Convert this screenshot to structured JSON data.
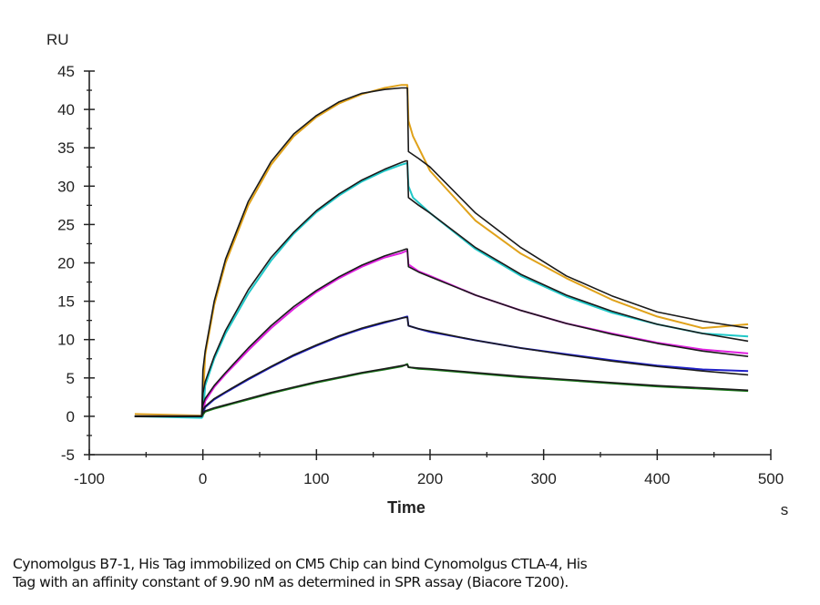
{
  "chart_data": {
    "type": "line",
    "title": "",
    "xlabel": "Time",
    "xunit": "s",
    "ylabel": "RU",
    "xlim": [
      -100,
      500
    ],
    "ylim": [
      -5,
      45
    ],
    "xticks": [
      -100,
      0,
      100,
      200,
      300,
      400,
      500
    ],
    "yticks": [
      -5,
      0,
      5,
      10,
      15,
      20,
      25,
      30,
      35,
      40,
      45
    ],
    "grid": false,
    "legend": "none",
    "association_end_s": 180,
    "series": [
      {
        "name": "conc-1 measured",
        "color": "#e0a21a",
        "kind": "measured",
        "x": [
          -60,
          -1,
          0,
          2,
          10,
          20,
          40,
          60,
          80,
          100,
          120,
          140,
          160,
          175,
          180,
          181,
          185,
          200,
          240,
          280,
          320,
          360,
          400,
          440,
          480
        ],
        "y": [
          0.3,
          0.1,
          2,
          8,
          14.5,
          20,
          27.5,
          32.8,
          36.5,
          39,
          40.8,
          42,
          42.8,
          43.2,
          43.2,
          38.5,
          36.5,
          32,
          25.5,
          21.2,
          18,
          15.2,
          13,
          11.5,
          12
        ]
      },
      {
        "name": "conc-1 fit",
        "color": "#1a1a1a",
        "kind": "fit",
        "x": [
          -60,
          -1,
          0,
          2,
          10,
          20,
          40,
          60,
          80,
          100,
          120,
          140,
          160,
          175,
          179,
          180,
          181,
          190,
          200,
          240,
          280,
          320,
          360,
          400,
          440,
          480
        ],
        "y": [
          0,
          0,
          6,
          8.5,
          15,
          20.5,
          28,
          33.2,
          36.8,
          39.2,
          41,
          42.1,
          42.6,
          42.8,
          42.8,
          42.8,
          34.5,
          33.6,
          32.5,
          26.5,
          22,
          18.3,
          15.7,
          13.6,
          12.4,
          11.5
        ]
      },
      {
        "name": "conc-2 measured",
        "color": "#20c8c8",
        "kind": "measured",
        "x": [
          -60,
          -1,
          0,
          2,
          10,
          20,
          40,
          60,
          80,
          100,
          120,
          140,
          160,
          175,
          180,
          181,
          185,
          200,
          240,
          280,
          320,
          360,
          400,
          440,
          480
        ],
        "y": [
          0,
          -0.2,
          0,
          4,
          7.5,
          10.8,
          16,
          20.3,
          23.8,
          26.6,
          28.8,
          30.6,
          32,
          32.8,
          33,
          30,
          28.5,
          26.5,
          21.8,
          18.3,
          15.6,
          13.5,
          12,
          10.8,
          10.4
        ]
      },
      {
        "name": "conc-2 fit",
        "color": "#1a1a1a",
        "kind": "fit",
        "x": [
          -60,
          -1,
          0,
          2,
          10,
          20,
          40,
          60,
          80,
          100,
          120,
          140,
          160,
          175,
          179,
          180,
          181,
          190,
          200,
          240,
          280,
          320,
          360,
          400,
          440,
          480
        ],
        "y": [
          0,
          0,
          3,
          4.5,
          7.8,
          11.2,
          16.5,
          20.7,
          24,
          26.8,
          29,
          30.8,
          32.2,
          33.1,
          33.3,
          33.3,
          28.5,
          27.5,
          26.5,
          22,
          18.5,
          15.8,
          13.7,
          12,
          10.8,
          9.8
        ]
      },
      {
        "name": "conc-3 measured",
        "color": "#e020e0",
        "kind": "measured",
        "x": [
          -60,
          -1,
          0,
          2,
          10,
          20,
          40,
          60,
          80,
          100,
          120,
          140,
          160,
          175,
          180,
          181,
          190,
          200,
          240,
          280,
          320,
          360,
          400,
          440,
          480
        ],
        "y": [
          0,
          0,
          0.5,
          2,
          3.8,
          5.5,
          8.6,
          11.5,
          14,
          16.2,
          18,
          19.5,
          20.7,
          21.3,
          21.6,
          19.8,
          18.9,
          18.3,
          15.8,
          13.8,
          12.1,
          10.8,
          9.6,
          8.7,
          8.2
        ]
      },
      {
        "name": "conc-3 fit",
        "color": "#1a1a1a",
        "kind": "fit",
        "x": [
          -60,
          -1,
          0,
          2,
          10,
          20,
          40,
          60,
          80,
          100,
          120,
          140,
          160,
          175,
          179,
          180,
          181,
          190,
          200,
          240,
          280,
          320,
          360,
          400,
          440,
          480
        ],
        "y": [
          0,
          0,
          1.5,
          2.3,
          4,
          5.7,
          8.9,
          11.8,
          14.3,
          16.4,
          18.2,
          19.7,
          20.9,
          21.6,
          21.8,
          21.8,
          19.5,
          18.8,
          18.2,
          15.8,
          13.8,
          12.1,
          10.7,
          9.5,
          8.5,
          7.8
        ]
      },
      {
        "name": "conc-4 measured",
        "color": "#2020c8",
        "kind": "measured",
        "x": [
          -60,
          -1,
          0,
          2,
          10,
          20,
          40,
          60,
          80,
          100,
          120,
          140,
          160,
          175,
          180,
          181,
          190,
          200,
          240,
          280,
          320,
          360,
          400,
          440,
          480
        ],
        "y": [
          0,
          0,
          0.3,
          1.2,
          2.2,
          3.1,
          4.8,
          6.4,
          7.9,
          9.2,
          10.4,
          11.4,
          12.2,
          12.8,
          13,
          11.8,
          11.4,
          11,
          9.9,
          8.9,
          8.1,
          7.3,
          6.6,
          6.1,
          5.9
        ]
      },
      {
        "name": "conc-4 fit",
        "color": "#1a1a1a",
        "kind": "fit",
        "x": [
          -60,
          -1,
          0,
          2,
          10,
          20,
          40,
          60,
          80,
          100,
          120,
          140,
          160,
          175,
          179,
          180,
          181,
          190,
          200,
          240,
          280,
          320,
          360,
          400,
          440,
          480
        ],
        "y": [
          0,
          0,
          0.8,
          1.3,
          2.3,
          3.2,
          4.9,
          6.5,
          8,
          9.3,
          10.5,
          11.5,
          12.3,
          12.8,
          12.9,
          12.9,
          11.8,
          11.4,
          11.1,
          9.9,
          8.9,
          8,
          7.2,
          6.5,
          5.9,
          5.4
        ]
      },
      {
        "name": "conc-5 measured",
        "color": "#1a7a1a",
        "kind": "measured",
        "x": [
          -60,
          -1,
          0,
          2,
          10,
          20,
          40,
          60,
          80,
          100,
          120,
          140,
          160,
          175,
          180,
          181,
          190,
          200,
          240,
          280,
          320,
          360,
          400,
          440,
          480
        ],
        "y": [
          0,
          0,
          0.2,
          0.6,
          1,
          1.4,
          2.2,
          3,
          3.7,
          4.4,
          5,
          5.6,
          6.1,
          6.5,
          6.8,
          6.4,
          6.2,
          6.1,
          5.6,
          5.1,
          4.7,
          4.3,
          3.9,
          3.6,
          3.3
        ]
      },
      {
        "name": "conc-5 fit",
        "color": "#1a1a1a",
        "kind": "fit",
        "x": [
          -60,
          -1,
          0,
          2,
          10,
          20,
          40,
          60,
          80,
          100,
          120,
          140,
          160,
          175,
          179,
          180,
          181,
          190,
          200,
          240,
          280,
          320,
          360,
          400,
          440,
          480
        ],
        "y": [
          0,
          0,
          0.4,
          0.7,
          1.1,
          1.5,
          2.3,
          3.1,
          3.8,
          4.5,
          5.1,
          5.7,
          6.2,
          6.6,
          6.7,
          6.7,
          6.4,
          6.3,
          6.2,
          5.7,
          5.2,
          4.8,
          4.4,
          4,
          3.7,
          3.4
        ]
      }
    ]
  },
  "caption": {
    "line1": "Cynomolgus B7-1, His Tag immobilized on CM5 Chip can bind Cynomolgus CTLA-4, His",
    "line2": "Tag with an affinity constant of 9.90 nM as determined in SPR assay (Biacore T200)."
  }
}
